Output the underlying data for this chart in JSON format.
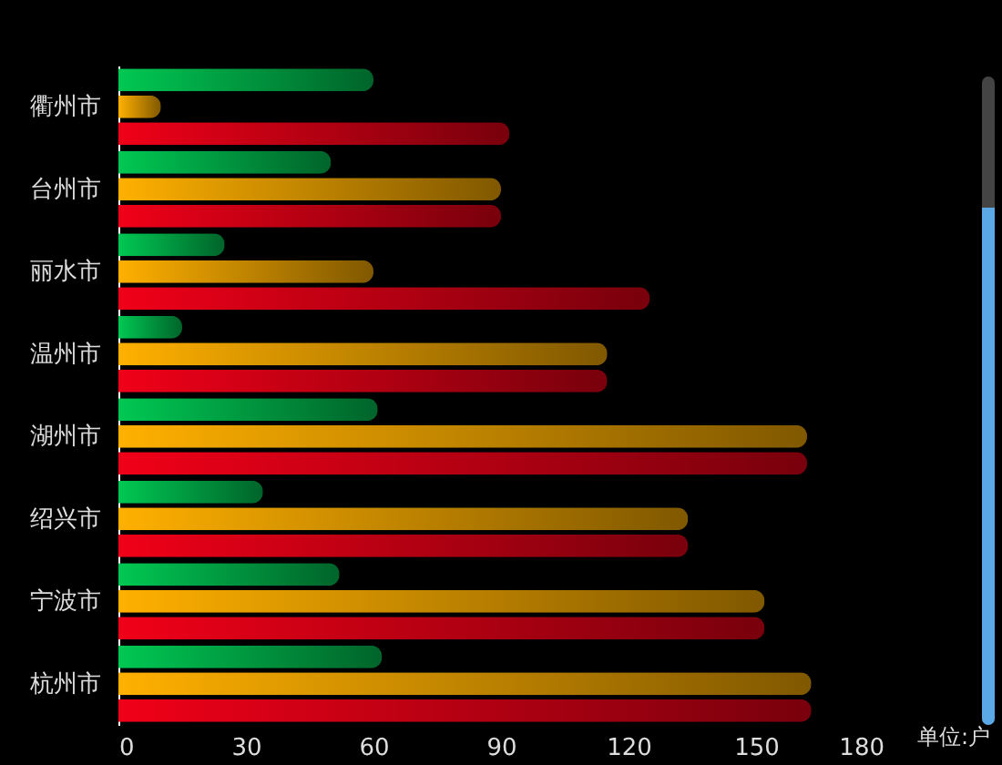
{
  "chart_data": {
    "type": "bar",
    "orientation": "horizontal",
    "xlabel": "单位:户",
    "categories": [
      "衢州市",
      "台州市",
      "丽水市",
      "温州市",
      "湖州市",
      "绍兴市",
      "宁波市",
      "杭州市"
    ],
    "series": [
      {
        "color": "#00c853",
        "values": [
          60,
          50,
          25,
          15,
          61,
          34,
          52,
          62
        ]
      },
      {
        "color": "#ffb000",
        "values": [
          10,
          90,
          60,
          115,
          162,
          134,
          152,
          163
        ]
      },
      {
        "color": "#f00018",
        "values": [
          92,
          90,
          125,
          115,
          162,
          134,
          152,
          163
        ]
      }
    ],
    "xlim": [
      0,
      180
    ],
    "xticks": [
      0,
      30,
      60,
      90,
      120,
      150,
      180
    ]
  }
}
